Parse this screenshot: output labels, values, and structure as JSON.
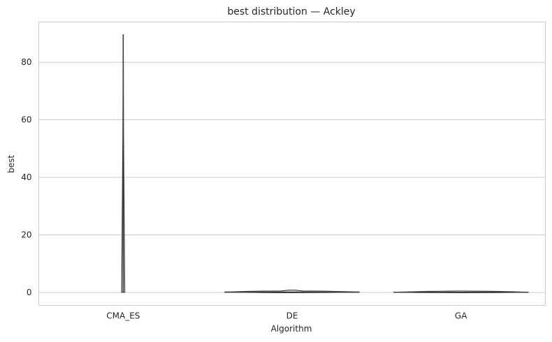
{
  "chart_data": {
    "type": "violin",
    "title": "best distribution — Ackley",
    "xlabel": "Algorithm",
    "ylabel": "best",
    "categories": [
      "CMA_ES",
      "DE",
      "GA"
    ],
    "ylim": [
      -4.5,
      94
    ],
    "yticks": [
      0,
      20,
      40,
      60,
      80
    ],
    "ytick_labels": [
      "0",
      "20",
      "40",
      "60",
      "80"
    ],
    "grid": "horizontal",
    "distributions": [
      {
        "category": "CMA_ES",
        "min": 0,
        "max": 89.7,
        "median": 0
      },
      {
        "category": "DE",
        "min": 0,
        "max": 0.5,
        "median": 0.1
      },
      {
        "category": "GA",
        "min": 0,
        "max": 0.2,
        "median": 0.05
      }
    ],
    "colors": {
      "body": "#e3e3e3",
      "line": "#3d3d3d",
      "grid": "#cccccc",
      "frame": "#cccccc",
      "text": "#262626"
    }
  }
}
